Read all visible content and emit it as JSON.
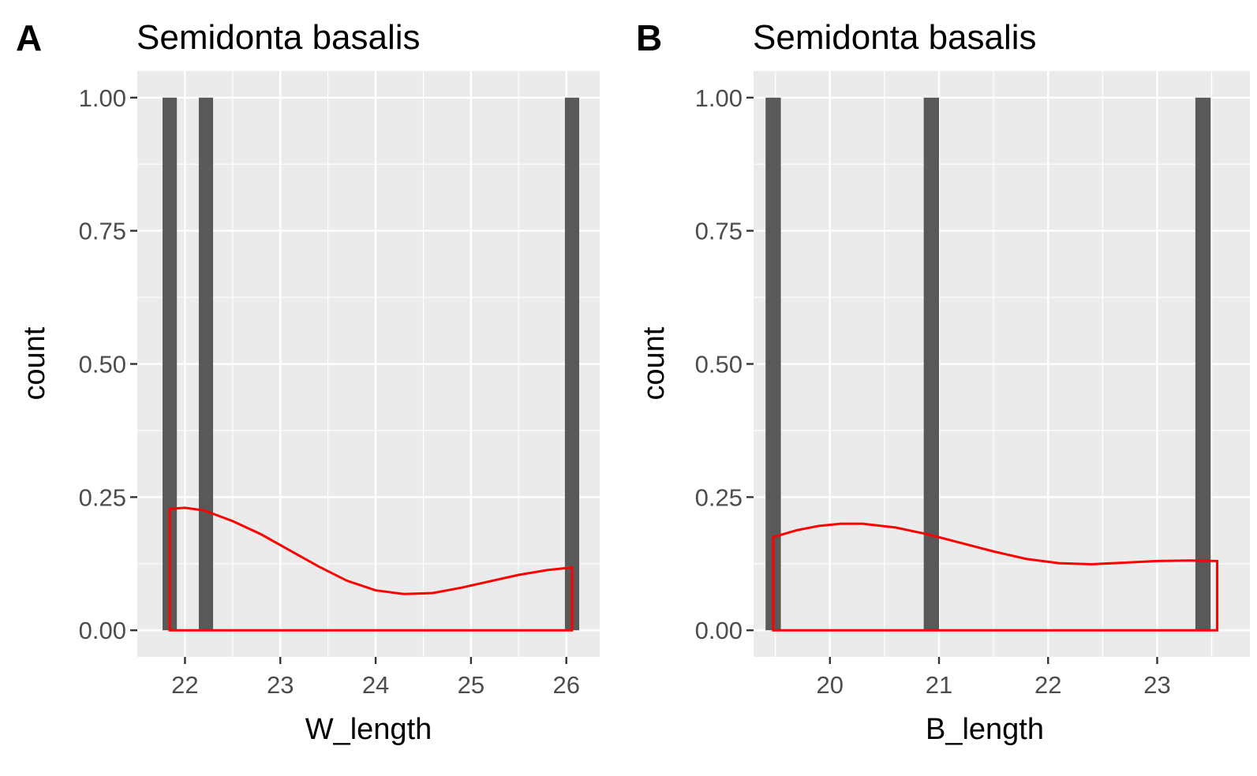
{
  "chart_data": [
    {
      "type": "histogram",
      "panel_tag": "A",
      "title": "Semidonta basalis",
      "xlabel": "W_length",
      "ylabel": "count",
      "xlim": [
        21.5,
        26.35
      ],
      "ylim": [
        -0.05,
        1.05
      ],
      "x_ticks": [
        22,
        23,
        24,
        25,
        26
      ],
      "x_tick_labels": [
        "22",
        "23",
        "24",
        "25",
        "26"
      ],
      "y_ticks": [
        0,
        0.25,
        0.5,
        0.75,
        1
      ],
      "y_tick_labels": [
        "0.00",
        "0.25",
        "0.50",
        "0.75",
        "1.00"
      ],
      "bar_color": "#595959",
      "bars": [
        {
          "center": 21.84,
          "count": 1
        },
        {
          "center": 22.22,
          "count": 1
        },
        {
          "center": 26.06,
          "count": 1
        }
      ],
      "bar_width": 0.15,
      "density_color": "#ff0000",
      "density": {
        "x": [
          21.84,
          22.0,
          22.2,
          22.5,
          22.8,
          23.1,
          23.4,
          23.7,
          24.0,
          24.3,
          24.6,
          24.9,
          25.2,
          25.5,
          25.8,
          26.06
        ],
        "y": [
          0.228,
          0.23,
          0.225,
          0.205,
          0.18,
          0.15,
          0.12,
          0.093,
          0.075,
          0.068,
          0.07,
          0.08,
          0.092,
          0.104,
          0.113,
          0.118
        ]
      },
      "grid": true,
      "legend": "none"
    },
    {
      "type": "histogram",
      "panel_tag": "B",
      "title": "Semidonta basalis",
      "xlabel": "B_length",
      "ylabel": "count",
      "xlim": [
        19.3,
        23.85
      ],
      "ylim": [
        -0.05,
        1.05
      ],
      "x_ticks": [
        20,
        21,
        22,
        23
      ],
      "x_tick_labels": [
        "20",
        "21",
        "22",
        "23"
      ],
      "y_ticks": [
        0,
        0.25,
        0.5,
        0.75,
        1
      ],
      "y_tick_labels": [
        "0.00",
        "0.25",
        "0.50",
        "0.75",
        "1.00"
      ],
      "bar_color": "#595959",
      "bars": [
        {
          "center": 19.48,
          "count": 1
        },
        {
          "center": 20.93,
          "count": 1
        },
        {
          "center": 23.42,
          "count": 1
        }
      ],
      "bar_width": 0.14,
      "density_color": "#ff0000",
      "density": {
        "x": [
          19.48,
          19.7,
          19.9,
          20.1,
          20.3,
          20.6,
          20.9,
          21.2,
          21.5,
          21.8,
          22.1,
          22.4,
          22.7,
          23.0,
          23.3,
          23.55
        ],
        "y": [
          0.175,
          0.188,
          0.196,
          0.2,
          0.2,
          0.193,
          0.18,
          0.164,
          0.148,
          0.134,
          0.126,
          0.124,
          0.127,
          0.13,
          0.131,
          0.13
        ]
      },
      "grid": true,
      "legend": "none"
    }
  ]
}
